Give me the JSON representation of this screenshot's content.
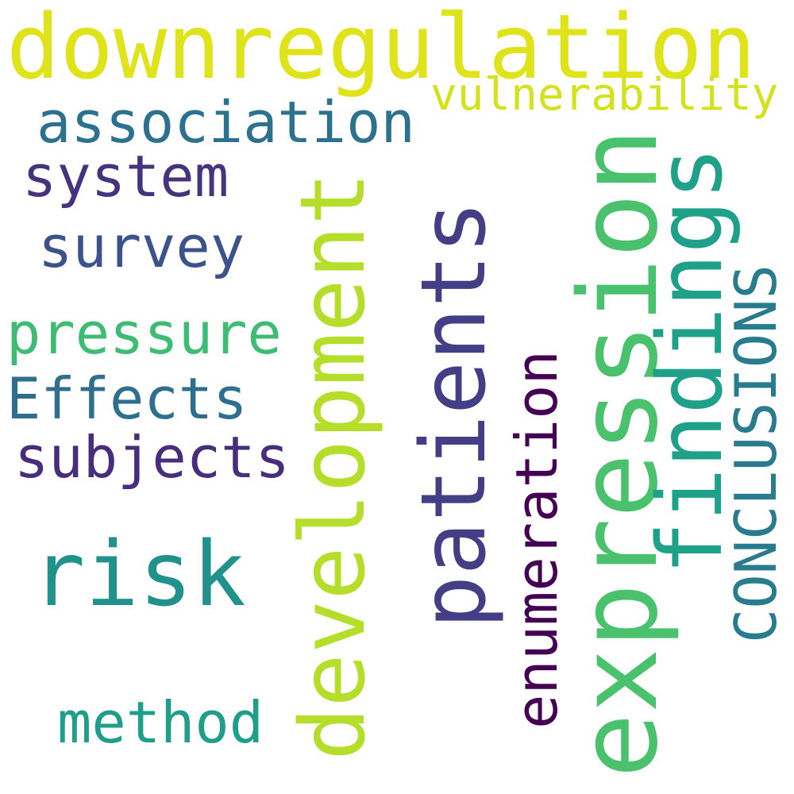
{
  "words": [
    {
      "text": "downregulation",
      "color": "#dfe319"
    },
    {
      "text": "vulnerability",
      "color": "#d2e21b"
    },
    {
      "text": "association",
      "color": "#2c728e"
    },
    {
      "text": "system",
      "color": "#46337e"
    },
    {
      "text": "survey",
      "color": "#3b528b"
    },
    {
      "text": "pressure",
      "color": "#3fbc73"
    },
    {
      "text": "Effects",
      "color": "#2e6f8e"
    },
    {
      "text": "subjects",
      "color": "#472d7b"
    },
    {
      "text": "risk",
      "color": "#21918c"
    },
    {
      "text": "method",
      "color": "#1f9e89"
    },
    {
      "text": "development",
      "color": "#b5de2b"
    },
    {
      "text": "patients",
      "color": "#433e85"
    },
    {
      "text": "enumeration",
      "color": "#440154"
    },
    {
      "text": "expression",
      "color": "#4ac16d"
    },
    {
      "text": "findings",
      "color": "#1fa088"
    },
    {
      "text": "CONCLUSIONS",
      "color": "#287c8e"
    }
  ]
}
